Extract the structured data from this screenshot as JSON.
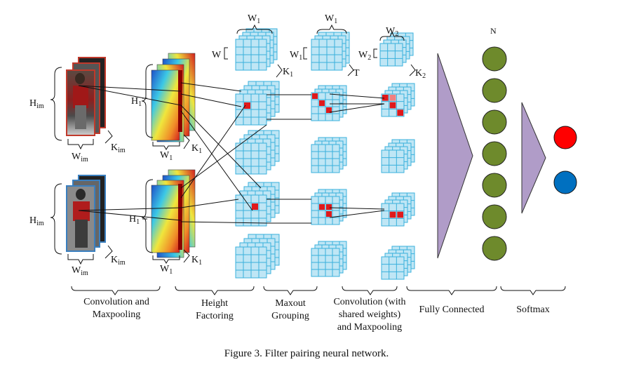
{
  "figure": {
    "caption": "Figure 3. Filter pairing neural network."
  },
  "stage_labels": {
    "convolution_maxpooling_line1": "Convolution and",
    "convolution_maxpooling_line2": "Maxpooling",
    "height_factoring_line1": "Height",
    "height_factoring_line2": "Factoring",
    "maxout_grouping_line1": "Maxout",
    "maxout_grouping_line2": "Grouping",
    "conv_shared_line1": "Convolution (with",
    "conv_shared_line2": "shared weights)",
    "conv_shared_line3": "and Maxpooling",
    "fully_connected": "Fully Connected",
    "softmax": "Softmax"
  },
  "dimension_labels": {
    "h_im": "H",
    "h_im_sub": "im",
    "w_im": "W",
    "w_im_sub": "im",
    "k_im": "K",
    "k_im_sub": "im",
    "h1": "H",
    "h1_sub": "1",
    "w1": "W",
    "w1_sub": "1",
    "k1": "K",
    "k1_sub": "1",
    "t": "T",
    "w2": "W",
    "w2_sub": "2",
    "k2": "K",
    "k2_sub": "2",
    "n": "N"
  },
  "colors": {
    "grid_fill": "#bfe6f5",
    "grid_line": "#3ab0dc",
    "highlight": "#e0191b",
    "fc_triangle": "#b09cc8",
    "neuron": "#6e8a2c",
    "output_red": "#ff0000",
    "output_blue": "#0070c0"
  },
  "fc_neuron_count": 7
}
